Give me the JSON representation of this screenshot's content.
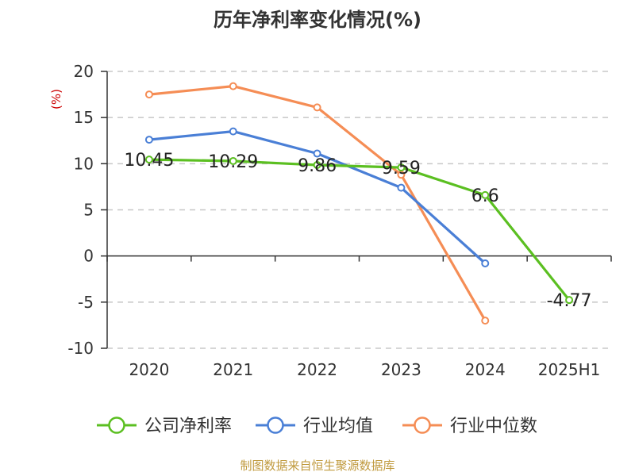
{
  "chart_data": {
    "type": "line",
    "title": "历年净利率变化情况(%)",
    "ylabel": "(%)",
    "xlabel": "",
    "categories": [
      "2020",
      "2021",
      "2022",
      "2023",
      "2024",
      "2025H1"
    ],
    "ylim": [
      -10,
      20
    ],
    "yticks": [
      20,
      15,
      10,
      5,
      0,
      -5,
      -10
    ],
    "grid": true,
    "legend_position": "bottom",
    "series": [
      {
        "name": "公司净利率",
        "color": "#5bbf21",
        "values": [
          10.45,
          10.29,
          9.86,
          9.59,
          6.6,
          -4.77
        ],
        "labels": [
          "10.45",
          "10.29",
          "9.86",
          "9.59",
          "6.6",
          "-4.77"
        ]
      },
      {
        "name": "行业均值",
        "color": "#4a7fd6",
        "values": [
          12.6,
          13.5,
          11.1,
          7.4,
          -0.8,
          null
        ]
      },
      {
        "name": "行业中位数",
        "color": "#f58d55",
        "values": [
          17.5,
          18.4,
          16.1,
          8.8,
          -7.0,
          null
        ]
      }
    ]
  },
  "source_text": "制图数据来自恒生聚源数据库"
}
